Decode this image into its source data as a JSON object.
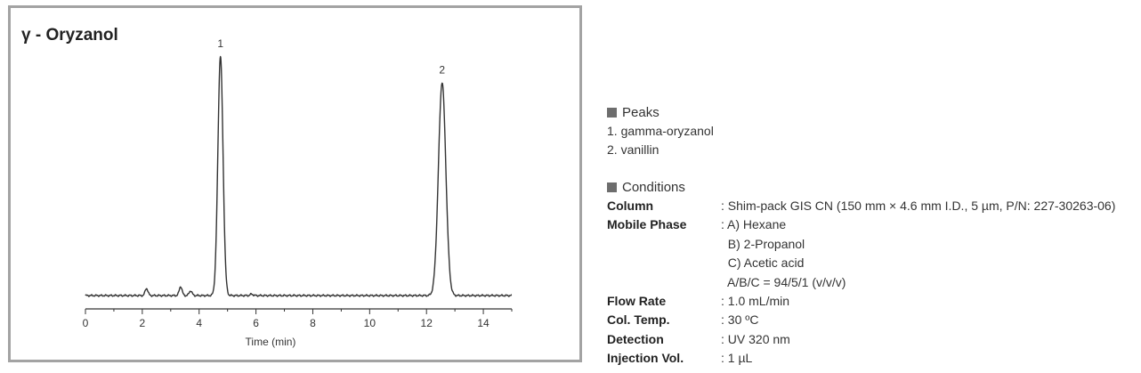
{
  "chart_data": {
    "type": "line",
    "title": "γ - Oryzanol",
    "xlabel": "Time (min)",
    "ylabel": "",
    "xlim": [
      0,
      15
    ],
    "ylim": [
      0,
      100
    ],
    "xticks": [
      0,
      2,
      4,
      6,
      8,
      10,
      12,
      14
    ],
    "xtick_labels": [
      "0",
      "2",
      "4",
      "6",
      "8",
      "10",
      "12",
      "14"
    ],
    "grid": false,
    "baseline": 0,
    "peaks": [
      {
        "label": "1",
        "time": 4.75,
        "height": 100,
        "width": 0.09
      },
      {
        "label": "2",
        "time": 12.55,
        "height": 89,
        "width": 0.13
      }
    ],
    "minor_peaks": [
      {
        "time": 2.15,
        "height": 3
      },
      {
        "time": 3.35,
        "height": 3.8
      },
      {
        "time": 3.7,
        "height": 2
      },
      {
        "time": 5.85,
        "height": 0.6
      }
    ]
  },
  "info": {
    "peaks_title": "Peaks",
    "peaks": [
      "1. gamma-oryzanol",
      "2. vanillin"
    ],
    "conditions_title": "Conditions",
    "conditions": [
      {
        "label": "Column",
        "values": [
          ": Shim-pack GIS CN (150 mm × 4.6 mm I.D., 5 µm, P/N: 227-30263-06)"
        ]
      },
      {
        "label": "Mobile Phase",
        "values": [
          ": A) Hexane",
          "  B) 2-Propanol",
          "  C) Acetic acid",
          "  A/B/C = 94/5/1 (v/v/v)"
        ]
      },
      {
        "label": "Flow Rate",
        "values": [
          ": 1.0 mL/min"
        ]
      },
      {
        "label": "Col. Temp.",
        "values": [
          ": 30 ºC"
        ]
      },
      {
        "label": "Detection",
        "values": [
          ": UV 320 nm"
        ]
      },
      {
        "label": "Injection Vol.",
        "values": [
          ": 1 µL"
        ]
      }
    ]
  },
  "colors": {
    "trace": "#333333",
    "frame": "#a3a3a3",
    "square": "#6d6d6d"
  }
}
